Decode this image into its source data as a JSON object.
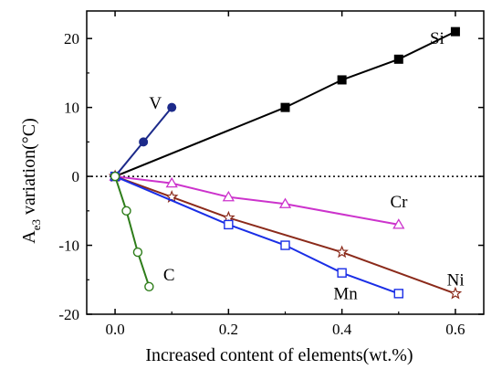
{
  "chart_data": {
    "type": "line",
    "xlabel": "Increased content of elements(wt.%)",
    "ylabel": {
      "prefix": "A",
      "subscript": "e3",
      "suffix": " variation(°C)"
    },
    "xlim": [
      -0.05,
      0.65
    ],
    "ylim": [
      -20,
      24
    ],
    "xticks": [
      0.0,
      0.2,
      0.4,
      0.6
    ],
    "xtick_labels": [
      "0.0",
      "0.2",
      "0.4",
      "0.6"
    ],
    "yticks": [
      -20,
      -10,
      0,
      10,
      20
    ],
    "ytick_labels": [
      "-20",
      "-10",
      "0",
      "10",
      "20"
    ],
    "reference_line": {
      "y": 0,
      "style": "dotted"
    },
    "series": [
      {
        "name": "Si",
        "x": [
          0.0,
          0.3,
          0.4,
          0.5,
          0.6
        ],
        "y": [
          0,
          10,
          14,
          17,
          21
        ],
        "color": "#000000",
        "marker": "filled-square"
      },
      {
        "name": "V",
        "x": [
          0.0,
          0.05,
          0.1
        ],
        "y": [
          0,
          5,
          10
        ],
        "color": "#1c2a8a",
        "marker": "filled-circle"
      },
      {
        "name": "Cr",
        "x": [
          0.0,
          0.1,
          0.2,
          0.3,
          0.5
        ],
        "y": [
          0,
          -1,
          -3,
          -4,
          -7
        ],
        "color": "#cc33cc",
        "marker": "open-triangle"
      },
      {
        "name": "Ni",
        "x": [
          0.0,
          0.1,
          0.2,
          0.4,
          0.6
        ],
        "y": [
          0,
          -3,
          -6,
          -11,
          -17
        ],
        "color": "#8b2a1a",
        "marker": "open-star"
      },
      {
        "name": "Mn",
        "x": [
          0.0,
          0.2,
          0.3,
          0.4,
          0.5
        ],
        "y": [
          0,
          -7,
          -10,
          -14,
          -17
        ],
        "color": "#1a2ee6",
        "marker": "open-square"
      },
      {
        "name": "C",
        "x": [
          0.0,
          0.02,
          0.04,
          0.06
        ],
        "y": [
          0,
          -5,
          -11,
          -16
        ],
        "color": "#2e7d1a",
        "marker": "open-circle"
      }
    ],
    "labels": [
      {
        "text": "Si",
        "x": 0.555,
        "y": 19.2
      },
      {
        "text": "V",
        "x": 0.06,
        "y": 9.8
      },
      {
        "text": "Cr",
        "x": 0.485,
        "y": -4.5
      },
      {
        "text": "Ni",
        "x": 0.585,
        "y": -15.8
      },
      {
        "text": "Mn",
        "x": 0.385,
        "y": -17.8
      },
      {
        "text": "C",
        "x": 0.085,
        "y": -15.1
      }
    ]
  }
}
